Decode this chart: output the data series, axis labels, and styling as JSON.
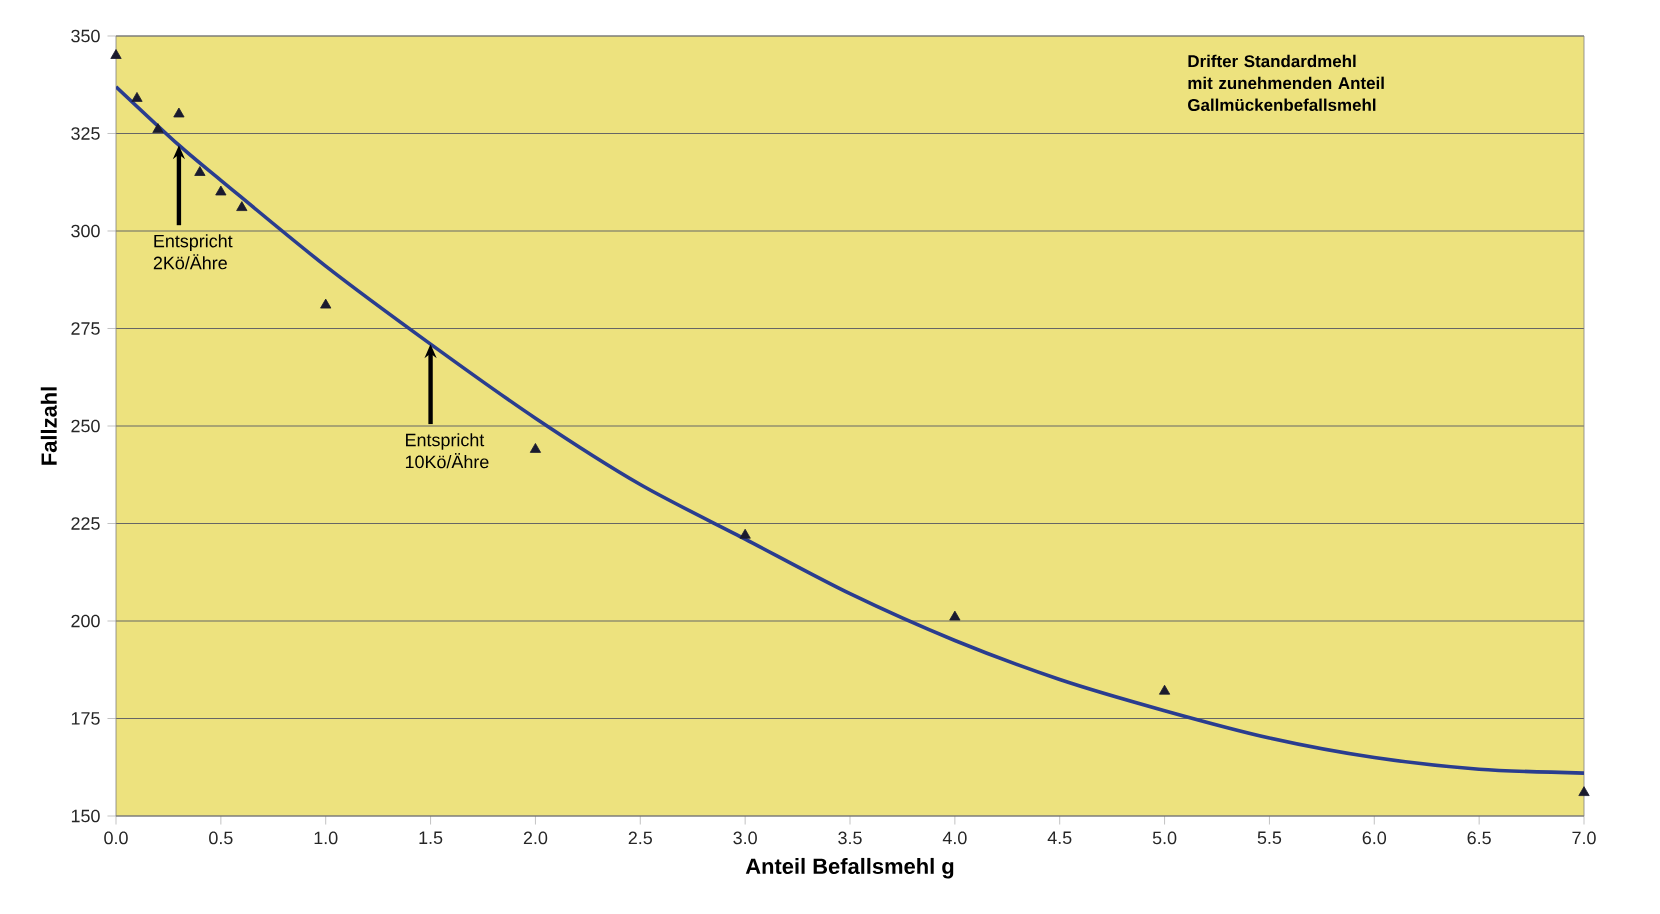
{
  "chart_data": {
    "type": "scatter",
    "title": "Drifter Standardmehl mit zunehmenden Anteil Gallmückenbefallsmehl",
    "xlabel": "Anteil Befallsmehl g",
    "ylabel": "Fallzahl",
    "series": [
      {
        "color": "#1a1a2e",
        "marker": "triangle",
        "x": [
          0,
          0.1,
          0.2,
          0.3,
          0.4,
          0.5,
          0.6,
          1.0,
          2.0,
          3.0,
          4.0,
          5.0,
          7.0
        ],
        "values": [
          345,
          334,
          326,
          330,
          315,
          310,
          306,
          281,
          244,
          222,
          201,
          182,
          156
        ]
      },
      {
        "type": "line",
        "color": "#2a3d8f",
        "x": [
          0,
          0.3,
          0.5,
          1,
          1.5,
          2,
          2.5,
          3,
          3.5,
          4,
          4.5,
          5,
          5.5,
          6,
          6.5,
          7
        ],
        "values": [
          337,
          322,
          313,
          291,
          271,
          252,
          235,
          221,
          207,
          195,
          185,
          177,
          170,
          165,
          162,
          161
        ]
      }
    ],
    "grid": "y",
    "xlim": [
      0,
      7
    ],
    "ylim": [
      150,
      350
    ],
    "xticks": [
      {
        "value": 0,
        "label": "0.0"
      },
      {
        "value": 0.5,
        "label": "0.5"
      },
      {
        "value": 1,
        "label": "1.0"
      },
      {
        "value": 1.5,
        "label": "1.5"
      },
      {
        "value": 2,
        "label": "2.0"
      },
      {
        "value": 2.5,
        "label": "2.5"
      },
      {
        "value": 3,
        "label": "3.0"
      },
      {
        "value": 3.5,
        "label": "3.5"
      },
      {
        "value": 4,
        "label": "4.0"
      },
      {
        "value": 4.5,
        "label": "4.5"
      },
      {
        "value": 5,
        "label": "5.0"
      },
      {
        "value": 5.5,
        "label": "5.5"
      },
      {
        "value": 6,
        "label": "6.0"
      },
      {
        "value": 6.5,
        "label": "6.5"
      },
      {
        "value": 7,
        "label": "7.0"
      }
    ],
    "yticks": [
      150,
      175,
      200,
      225,
      250,
      275,
      300,
      325,
      350
    ],
    "annotations": [
      {
        "text": "Entspricht 2Kö/Ähre",
        "x": 0.3,
        "y": 322
      },
      {
        "text": "Entspricht 10Kö/Ähre",
        "x": 1.5,
        "y": 271
      }
    ]
  }
}
